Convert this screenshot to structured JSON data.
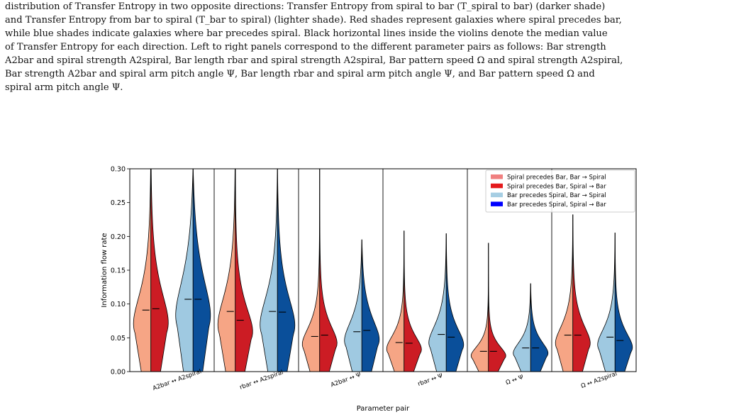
{
  "caption": {
    "lines": [
      "distribution of Transfer Entropy in two opposite directions: Transfer Entropy from spiral to bar (T_spiral to bar) (darker shade)",
      "and Transfer Entropy from bar to spiral (T_bar to spiral) (lighter shade). Red shades represent galaxies where spiral precedes bar,",
      "while blue shades indicate galaxies where bar precedes spiral. Black horizontal lines inside the violins denote the median value",
      "of Transfer Entropy for each direction. Left to right panels correspond to the different parameter pairs as follows: Bar strength",
      "A2bar and spiral strength A2spiral, Bar length rbar and spiral strength A2spiral, Bar pattern speed Ω and spiral strength A2spiral,",
      "Bar strength A2bar and spiral arm pitch angle Ψ, Bar length rbar and spiral arm pitch angle Ψ, and Bar pattern speed Ω and",
      "spiral arm pitch angle Ψ."
    ]
  },
  "colors": {
    "red_light": "#f6a585",
    "red_dark": "#cc1c24",
    "blue_light": "#9fc9e1",
    "blue_dark": "#0a4f9a",
    "legend_red_light": "#f08080",
    "legend_red_dark": "#e41a1c",
    "legend_blue_light": "#a6cee3",
    "legend_blue_dark": "#0000ff"
  },
  "chart_data": {
    "type": "violin",
    "xlabel": "Parameter pair",
    "ylabel": "Information flow rate",
    "ylim": [
      0,
      0.3
    ],
    "yticks": [
      "0.00",
      "0.05",
      "0.10",
      "0.15",
      "0.20",
      "0.25",
      "0.30"
    ],
    "categories": [
      "A2bar ↔ A2spiral",
      "rbar ↔ A2spiral",
      "A2bar ↔ Ψ",
      "rbar ↔ Ψ",
      "Ω ↔ Ψ",
      "Ω ↔ A2spiral"
    ],
    "legend_position": "top-right",
    "legend": [
      {
        "label": "Spiral precedes Bar, Bar → Spiral",
        "color": "#f08080"
      },
      {
        "label": "Spiral precedes Bar, Spiral → Bar",
        "color": "#e41a1c"
      },
      {
        "label": "Bar precedes Spiral, Bar → Spiral",
        "color": "#a6cee3"
      },
      {
        "label": "Bar precedes Spiral, Spiral → Bar",
        "color": "#0000ff"
      }
    ],
    "series": [
      {
        "name": "Spiral precedes Bar",
        "values": [
          {
            "light_median": 0.091,
            "dark_median": 0.093,
            "min": 0.0,
            "max": 0.33
          },
          {
            "light_median": 0.089,
            "dark_median": 0.076,
            "min": 0.0,
            "max": 0.33
          },
          {
            "light_median": 0.052,
            "dark_median": 0.054,
            "min": 0.0,
            "max": 0.3
          },
          {
            "light_median": 0.043,
            "dark_median": 0.042,
            "min": 0.0,
            "max": 0.208
          },
          {
            "light_median": 0.03,
            "dark_median": 0.03,
            "min": 0.0,
            "max": 0.19
          },
          {
            "light_median": 0.054,
            "dark_median": 0.054,
            "min": 0.0,
            "max": 0.232
          }
        ]
      },
      {
        "name": "Bar precedes Spiral",
        "values": [
          {
            "light_median": 0.107,
            "dark_median": 0.107,
            "min": 0.0,
            "max": 0.3
          },
          {
            "light_median": 0.089,
            "dark_median": 0.088,
            "min": 0.0,
            "max": 0.3
          },
          {
            "light_median": 0.059,
            "dark_median": 0.061,
            "min": 0.0,
            "max": 0.195
          },
          {
            "light_median": 0.055,
            "dark_median": 0.051,
            "min": 0.0,
            "max": 0.204
          },
          {
            "light_median": 0.035,
            "dark_median": 0.035,
            "min": 0.0,
            "max": 0.13
          },
          {
            "light_median": 0.051,
            "dark_median": 0.046,
            "min": 0.0,
            "max": 0.205
          }
        ]
      }
    ]
  }
}
